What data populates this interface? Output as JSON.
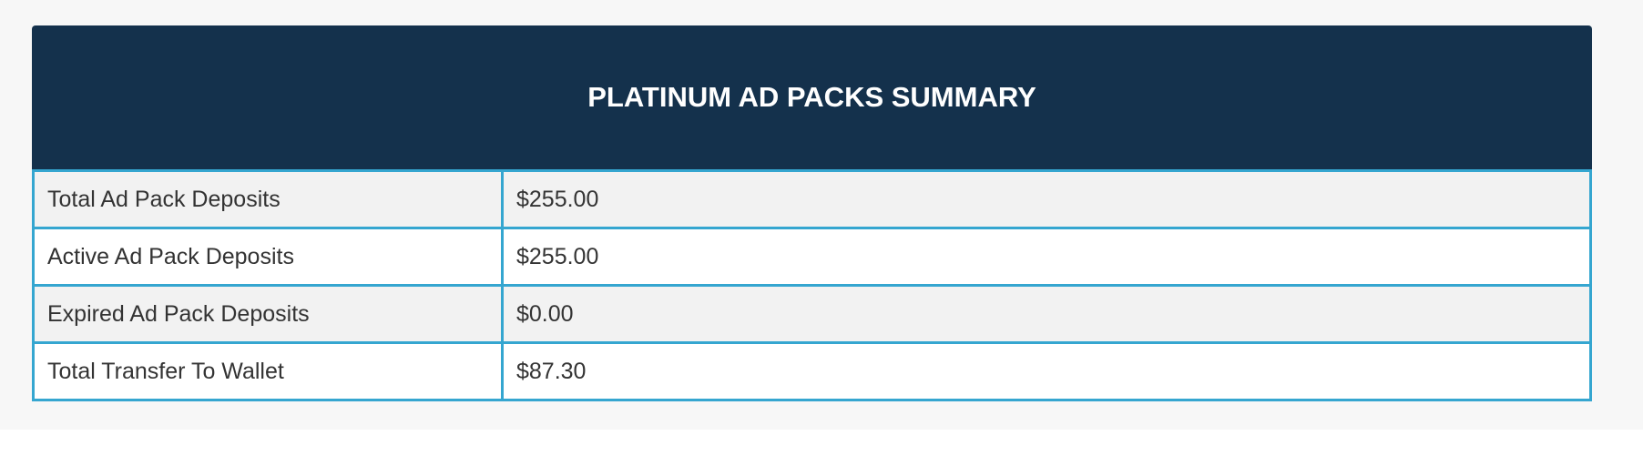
{
  "table": {
    "title": "PLATINUM AD PACKS SUMMARY",
    "rows": [
      [
        "Total Ad Pack Deposits",
        "$255.00"
      ],
      [
        "Active Ad Pack Deposits",
        "$255.00"
      ],
      [
        "Expired Ad Pack Deposits",
        "$0.00"
      ],
      [
        "Total Transfer To Wallet",
        "$87.30"
      ]
    ]
  }
}
